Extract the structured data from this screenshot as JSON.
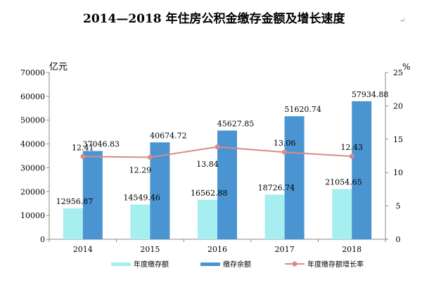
{
  "chart_data": {
    "type": "bar",
    "title": "2014—2018 年住房公积金缴存金额及增长速度",
    "title_mark": "↵",
    "left_unit": "亿元",
    "right_unit": "%",
    "categories": [
      "2014",
      "2015",
      "2016",
      "2017",
      "2018"
    ],
    "ylim": [
      0,
      70000
    ],
    "yticks": [
      0,
      10000,
      20000,
      30000,
      40000,
      50000,
      60000,
      70000
    ],
    "ytick_labels": [
      "0",
      "10000",
      "20000",
      "30000",
      "40000",
      "50000",
      "60000",
      "70000"
    ],
    "y2lim": [
      0,
      25
    ],
    "y2ticks": [
      0,
      5,
      10,
      15,
      20,
      25
    ],
    "y2tick_labels": [
      "0",
      "5",
      "10",
      "15",
      "20",
      "25"
    ],
    "grid": false,
    "legend_position": "bottom",
    "series": [
      {
        "name": "年度缴存额",
        "type": "bar",
        "axis": "left",
        "color": "#a6eef0",
        "values": [
          12956.87,
          14549.46,
          16562.88,
          18726.74,
          21054.65
        ],
        "labels": [
          "12956.87",
          "14549.46",
          "16562.88",
          "18726.74",
          "21054.65"
        ]
      },
      {
        "name": "缴存余额",
        "type": "bar",
        "axis": "left",
        "color": "#4a95d1",
        "values": [
          37046.83,
          40674.72,
          45627.85,
          51620.74,
          57934.88
        ],
        "labels": [
          "37046.83",
          "40674.72",
          "45627.85",
          "51620.74",
          "57934.88"
        ]
      },
      {
        "name": "年度缴存额增长率",
        "type": "line",
        "axis": "right",
        "color": "#d98a8a",
        "values": [
          12.41,
          12.29,
          13.84,
          13.06,
          12.43
        ],
        "labels": [
          "12.41",
          "12.29",
          "13.84",
          "13.06",
          "12.43"
        ]
      }
    ]
  }
}
